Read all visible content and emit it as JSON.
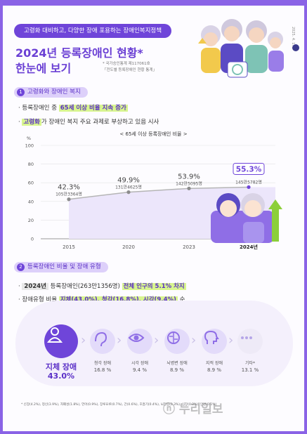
{
  "header": {
    "tag": "고령화 대비하고, 다양한 장애 포용하는 장애인복지정책",
    "title_line1": "2024년 등록장애인 현황*",
    "title_line2": "한눈에 보기",
    "source_line1": "* 국가승인통계 제117061호",
    "source_line2": "「전도별 등록장애인 현황 통계」",
    "date": "2025. 4. 17."
  },
  "section1": {
    "num": "1",
    "title": "고령화와 장애인 복지",
    "bullet1_pre": "등록장애인 중 ",
    "bullet1_hl": "65세 이상 비율 지속 증가",
    "bullet2_hl": "고령화",
    "bullet2_post": "가 장애인 복지 주요 과제로 부상하고 있음 시사"
  },
  "chart_data": {
    "type": "line",
    "title": "< 65세 이상 등록장애인 비율 >",
    "ylabel": "%",
    "ylim": [
      0,
      100
    ],
    "yticks": [
      "0",
      "20",
      "40",
      "60",
      "80",
      "100"
    ],
    "categories": [
      "2015",
      "2020",
      "2023",
      "2024년"
    ],
    "values": [
      42.3,
      49.9,
      53.9,
      55.3
    ],
    "value_labels": [
      "42.3%",
      "49.9%",
      "53.9%",
      "55.3%"
    ],
    "count_labels": [
      "105만3364명",
      "131만4625명",
      "142만5095명",
      "145만5782명"
    ],
    "grid": true,
    "colors": {
      "line": "#b5b5b5",
      "marker": "#8c8c8c",
      "area": "#ece6fb",
      "highlight": "#6f45d9"
    }
  },
  "section2": {
    "num": "2",
    "title": "등록장애인 비율 및 장애 유형",
    "bullet1_box": "2024년",
    "bullet1_mid": " 등록장애인(263만1356명) ",
    "bullet1_hl": "전체 인구의 5.1% 차지",
    "bullet2_pre": "장애유형 비율 ",
    "bullet2_hl": "지체(43.0%), 청각(16.8%), 시각(9.4%)",
    "bullet2_post": " 순"
  },
  "categories": [
    {
      "name": "지체 장애",
      "value": "43.0%",
      "icon": "person-icon"
    },
    {
      "name": "청각 장애",
      "value": "16.8 %",
      "icon": "ear-icon"
    },
    {
      "name": "시각 장애",
      "value": "9.4 %",
      "icon": "eye-icon"
    },
    {
      "name": "뇌병변 장애",
      "value": "8.9 %",
      "icon": "brain-icon"
    },
    {
      "name": "지적 장애",
      "value": "8.9 %",
      "icon": "head-icon"
    },
    {
      "name": "기타*",
      "value": "13.1 %",
      "icon": "dots-icon"
    }
  ],
  "footnote": "* 신장(4.2%), 정신(3.9%), 자폐성(1.8%), 언어(0.9%), 장루요루(0.7%), 간(0.6%), 호흡기(0.4%), 뇌전증(0.3%), 심장(0.2%), 안면(0.1%)",
  "watermark": "ⓝ 누리일보",
  "colors": {
    "brand": "#6f45d9",
    "accent": "#d8f58f"
  }
}
